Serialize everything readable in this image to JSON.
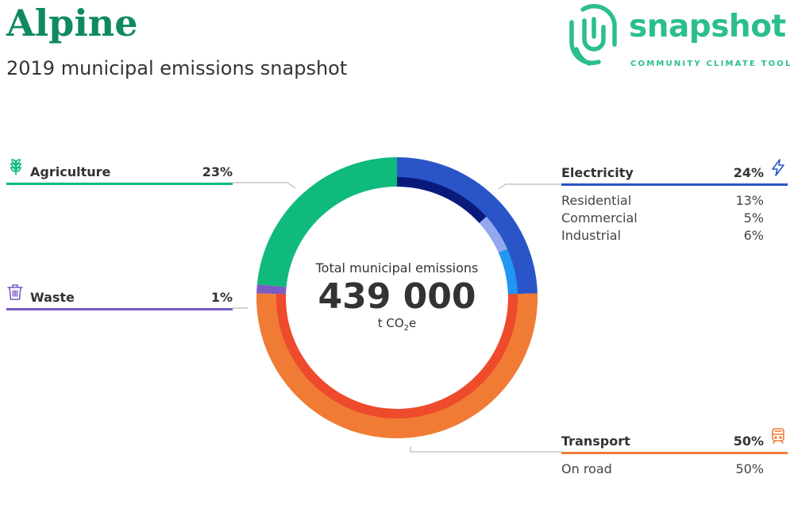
{
  "header": {
    "title": "Alpine",
    "subtitle": "2019 municipal emissions snapshot"
  },
  "logo": {
    "word": "snapshot",
    "tagline": "COMMUNITY CLIMATE TOOL",
    "color": "#2bbf8a"
  },
  "center": {
    "label": "Total municipal emissions",
    "value": "439 000",
    "unit_prefix": "t CO",
    "unit_sub": "2",
    "unit_suffix": "e"
  },
  "sectors": {
    "agriculture": {
      "name": "Agriculture",
      "pct": "23%",
      "color": "#10b97c",
      "icon": "wheat-icon"
    },
    "waste": {
      "name": "Waste",
      "pct": "1%",
      "color": "#7b5cc4",
      "icon": "trash-bin-icon"
    },
    "electricity": {
      "name": "Electricity",
      "pct": "24%",
      "color": "#2a55c8",
      "icon": "lightning-bolt-icon",
      "subs": [
        {
          "name": "Residential",
          "pct": "13%"
        },
        {
          "name": "Commercial",
          "pct": "5%"
        },
        {
          "name": "Industrial",
          "pct": "6%"
        }
      ]
    },
    "transport": {
      "name": "Transport",
      "pct": "50%",
      "color": "#f07b35",
      "icon": "train-icon",
      "subs": [
        {
          "name": "On road",
          "pct": "50%"
        }
      ]
    }
  },
  "chart_data": {
    "type": "pie",
    "variant": "donut",
    "total": 439000,
    "unit": "t CO2e",
    "series": [
      {
        "name": "Electricity",
        "value": 24,
        "color": "#2a55c8"
      },
      {
        "name": "Transport",
        "value": 50,
        "color": "#f07b35"
      },
      {
        "name": "Waste",
        "value": 1,
        "color": "#7b5cc4"
      },
      {
        "name": "Agriculture",
        "value": 23,
        "color": "#10b97c"
      }
    ],
    "subcategories": [
      {
        "parent": "Electricity",
        "name": "Residential",
        "value": 13,
        "color": "#0a1a7a"
      },
      {
        "parent": "Electricity",
        "name": "Commercial",
        "value": 5,
        "color": "#93a8ee"
      },
      {
        "parent": "Electricity",
        "name": "Industrial",
        "value": 6,
        "color": "#2196f3"
      },
      {
        "parent": "Transport",
        "name": "On road",
        "value": 50,
        "color": "#ee4a2c"
      }
    ]
  }
}
